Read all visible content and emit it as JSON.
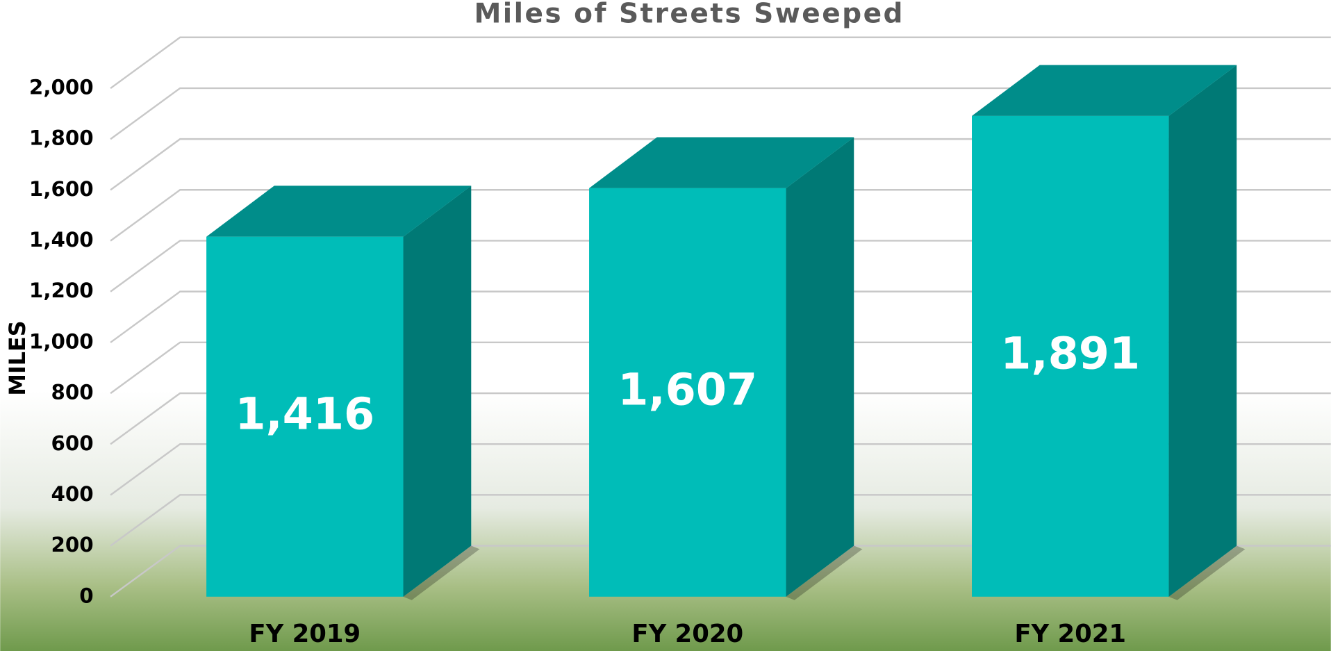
{
  "chart_data": {
    "type": "bar3d",
    "title": "Miles of Streets Sweeped",
    "y_label": "MILES",
    "categories": [
      "FY 2019",
      "FY 2020",
      "FY 2021"
    ],
    "values": [
      1416,
      1607,
      1891
    ],
    "value_labels": [
      "1,416",
      "1,607",
      "1,891"
    ],
    "color": "#00bdb8",
    "ylim": [
      0,
      2000
    ],
    "yticks": [
      0,
      200,
      400,
      600,
      800,
      {
        "value": 1000,
        "label": "1,000"
      },
      {
        "value": 1200,
        "label": "1,200"
      },
      {
        "value": 1400,
        "label": "1,400"
      },
      {
        "value": 1600,
        "label": "1,600"
      },
      {
        "value": 1800,
        "label": "1,800"
      },
      {
        "value": 2000,
        "label": "2,000"
      }
    ],
    "grid": true
  }
}
